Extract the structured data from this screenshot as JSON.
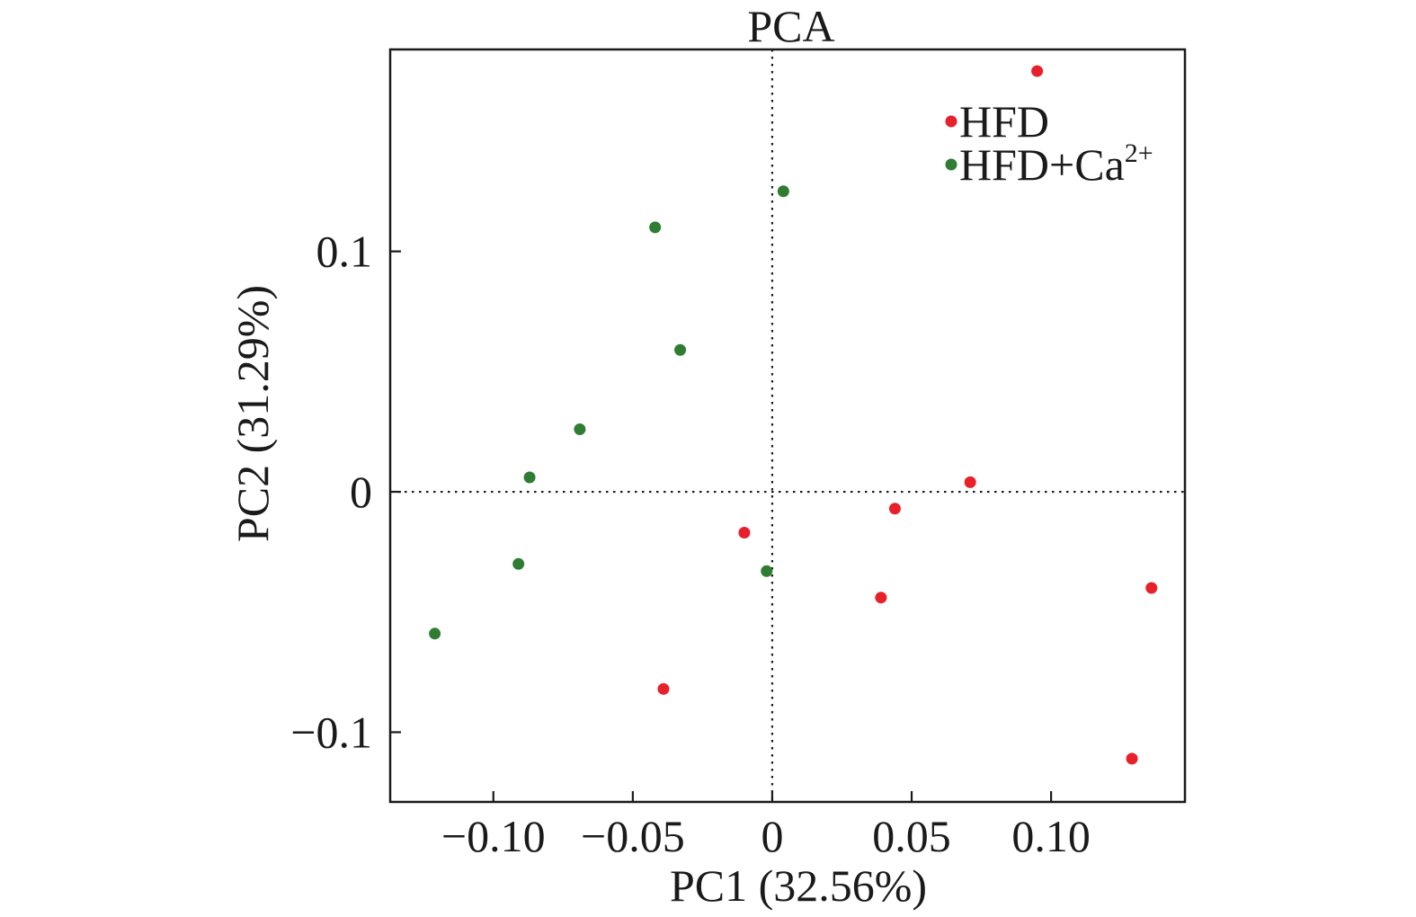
{
  "chart_data": {
    "type": "scatter",
    "title": "PCA",
    "xlabel": "PC1 (32.56%)",
    "ylabel": "PC2 (31.29%)",
    "xlim": [
      -0.137,
      0.148
    ],
    "ylim": [
      -0.129,
      0.184
    ],
    "x_ticks": [
      {
        "value": -0.1,
        "label": "−0.10"
      },
      {
        "value": -0.05,
        "label": "−0.05"
      },
      {
        "value": 0,
        "label": "0"
      },
      {
        "value": 0.05,
        "label": "0.05"
      },
      {
        "value": 0.1,
        "label": "0.10"
      }
    ],
    "y_ticks": [
      {
        "value": 0.1,
        "label": "0.1"
      },
      {
        "value": 0,
        "label": "0"
      },
      {
        "value": -0.1,
        "label": "−0.1"
      }
    ],
    "reference_lines": {
      "x": 0,
      "y": 0,
      "style": "dotted"
    },
    "legend": {
      "position": "top-right"
    },
    "series": [
      {
        "name": "HFD",
        "legend_main": "HFD",
        "legend_sup": "",
        "color": "#e8202a",
        "points": [
          {
            "x": 0.095,
            "y": 0.175
          },
          {
            "x": 0.071,
            "y": 0.004
          },
          {
            "x": 0.044,
            "y": -0.007
          },
          {
            "x": -0.01,
            "y": -0.017
          },
          {
            "x": 0.039,
            "y": -0.044
          },
          {
            "x": 0.136,
            "y": -0.04
          },
          {
            "x": -0.039,
            "y": -0.082
          },
          {
            "x": 0.129,
            "y": -0.111
          }
        ]
      },
      {
        "name": "HFD+Ca2+",
        "legend_main": "HFD+Ca",
        "legend_sup": "2+",
        "color": "#2e7d32",
        "points": [
          {
            "x": 0.004,
            "y": 0.125
          },
          {
            "x": -0.042,
            "y": 0.11
          },
          {
            "x": -0.033,
            "y": 0.059
          },
          {
            "x": -0.069,
            "y": 0.026
          },
          {
            "x": -0.087,
            "y": 0.006
          },
          {
            "x": -0.091,
            "y": -0.03
          },
          {
            "x": -0.002,
            "y": -0.033
          },
          {
            "x": -0.121,
            "y": -0.059
          }
        ]
      }
    ]
  }
}
